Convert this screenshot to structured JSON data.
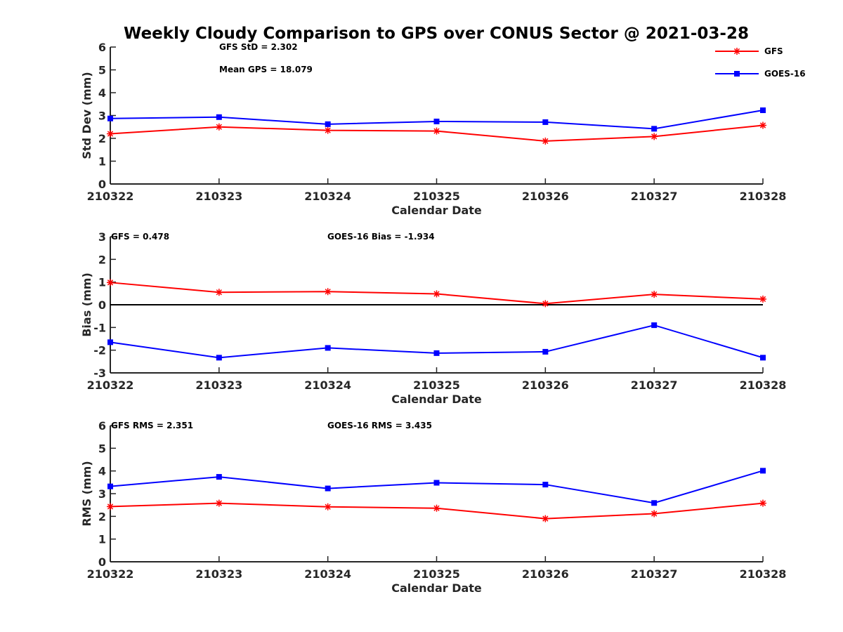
{
  "title": "Weekly Cloudy Comparison to GPS over CONUS Sector @ 2021-03-28",
  "colors": {
    "gfs": "#ff0000",
    "goes": "#0000ff",
    "axis": "#262626",
    "zero_line": "#000000"
  },
  "legend": {
    "placement": "top-right",
    "items": [
      {
        "label": "GFS",
        "marker": "asterisk"
      },
      {
        "label": "GOES-16",
        "marker": "square"
      }
    ]
  },
  "chart_data": [
    {
      "type": "line",
      "categories": [
        "210322",
        "210323",
        "210324",
        "210325",
        "210326",
        "210327",
        "210328"
      ],
      "xlabel": "Calendar Date",
      "ylabel": "Std Dev (mm)",
      "ylim": [
        0,
        6
      ],
      "yticks": [
        0,
        1,
        2,
        3,
        4,
        5,
        6
      ],
      "grid": false,
      "annotations": [
        "GFS StD = 2.302",
        "Mean GPS = 18.079"
      ],
      "series": [
        {
          "name": "GFS",
          "values": [
            2.2,
            2.5,
            2.35,
            2.32,
            1.88,
            2.08,
            2.57
          ]
        },
        {
          "name": "GOES-16",
          "values": [
            2.87,
            2.93,
            2.62,
            2.74,
            2.71,
            2.42,
            3.23
          ]
        }
      ]
    },
    {
      "type": "line",
      "categories": [
        "210322",
        "210323",
        "210324",
        "210325",
        "210326",
        "210327",
        "210328"
      ],
      "xlabel": "Calendar Date",
      "ylabel": "Bias (mm)",
      "ylim": [
        -3,
        3
      ],
      "yticks": [
        -3,
        -2,
        -1,
        0,
        1,
        2,
        3
      ],
      "grid": false,
      "zero_line": true,
      "annotations": [
        "GFS = 0.478",
        "GOES-16 Bias  = -1.934"
      ],
      "series": [
        {
          "name": "GFS",
          "values": [
            0.98,
            0.55,
            0.58,
            0.48,
            0.05,
            0.46,
            0.25
          ]
        },
        {
          "name": "GOES-16",
          "values": [
            -1.65,
            -2.33,
            -1.9,
            -2.13,
            -2.07,
            -0.9,
            -2.33
          ]
        }
      ]
    },
    {
      "type": "line",
      "categories": [
        "210322",
        "210323",
        "210324",
        "210325",
        "210326",
        "210327",
        "210328"
      ],
      "xlabel": "Calendar Date",
      "ylabel": "RMS (mm)",
      "ylim": [
        0,
        6
      ],
      "yticks": [
        0,
        1,
        2,
        3,
        4,
        5,
        6
      ],
      "grid": false,
      "annotations": [
        "GFS RMS = 2.351",
        "GOES-16 RMS = 3.435"
      ],
      "series": [
        {
          "name": "GFS",
          "values": [
            2.43,
            2.58,
            2.42,
            2.36,
            1.9,
            2.12,
            2.58
          ]
        },
        {
          "name": "GOES-16",
          "values": [
            3.32,
            3.74,
            3.23,
            3.48,
            3.4,
            2.59,
            4.01
          ]
        }
      ]
    }
  ]
}
